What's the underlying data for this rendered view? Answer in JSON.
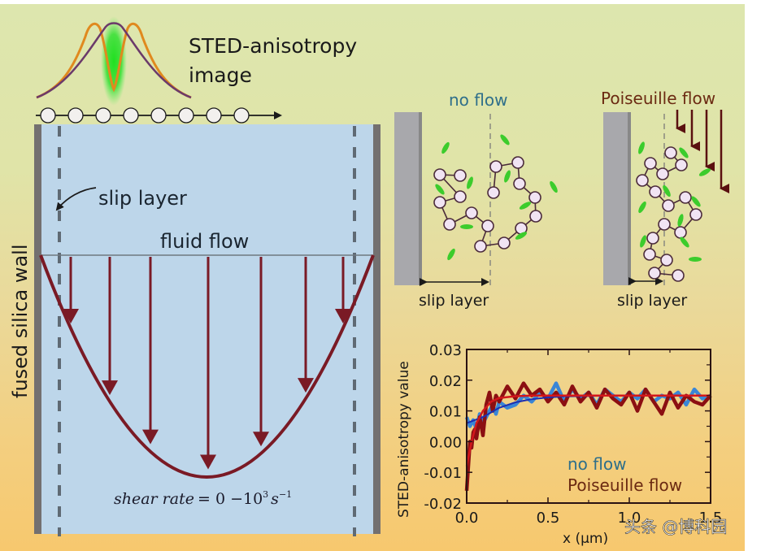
{
  "title": {
    "line1": "STED-anisotropy",
    "line2": "image"
  },
  "channel": {
    "wall_label": "fused silica wall",
    "slip_label": "slip layer",
    "flow_label": "fluid flow",
    "shear_label": "shear rate = 0 − 10³ s⁻¹",
    "shear_prefix": "shear rate",
    "shear_eq": "= 0 −10",
    "shear_exp": "3",
    "shear_unit": "s",
    "shear_unit_exp": "−1"
  },
  "panels": {
    "no_flow": {
      "title": "no flow",
      "slip_label": "slip layer"
    },
    "poiseuille": {
      "title": "Poiseuille flow",
      "slip_label": "slip layer"
    }
  },
  "colors": {
    "channel": "#bdd6ea",
    "wall": "#737070",
    "arrow": "#7a1a25",
    "no_flow": "#2f6f8a",
    "poiseuille": "#6b2a12",
    "series_blue": "#3a86d6",
    "series_red": "#8b0f12",
    "fit_blue": "#1c2fb0",
    "fit_red": "#d3171b",
    "dye": "#39d32a"
  },
  "watermark": "头条 @博科园",
  "chart_data": {
    "type": "line",
    "title": "",
    "xlabel": "x (μm)",
    "ylabel": "STED-anisotropy value",
    "xlim": [
      0.0,
      1.5
    ],
    "ylim": [
      -0.02,
      0.03
    ],
    "xticks": [
      "0.0",
      "0.5",
      "1.0",
      "1.5"
    ],
    "yticks": [
      "0.03",
      "0.02",
      "0.01",
      "0.00",
      "-0.01",
      "-0.02"
    ],
    "legend": [
      "no flow",
      "Poiseuille flow"
    ],
    "legend_position": "bottom-right",
    "series": [
      {
        "name": "no flow",
        "x": [
          0.0,
          0.02,
          0.04,
          0.06,
          0.08,
          0.1,
          0.12,
          0.14,
          0.16,
          0.18,
          0.2,
          0.25,
          0.3,
          0.35,
          0.4,
          0.45,
          0.5,
          0.55,
          0.6,
          0.65,
          0.7,
          0.75,
          0.8,
          0.85,
          0.9,
          0.95,
          1.0,
          1.05,
          1.1,
          1.15,
          1.2,
          1.25,
          1.3,
          1.35,
          1.4,
          1.45,
          1.5
        ],
        "y": [
          0.008,
          0.005,
          0.007,
          0.004,
          0.009,
          0.006,
          0.008,
          0.01,
          0.012,
          0.009,
          0.013,
          0.011,
          0.012,
          0.015,
          0.013,
          0.016,
          0.014,
          0.019,
          0.013,
          0.017,
          0.014,
          0.016,
          0.012,
          0.017,
          0.015,
          0.013,
          0.016,
          0.014,
          0.017,
          0.013,
          0.015,
          0.014,
          0.016,
          0.012,
          0.017,
          0.014,
          0.015
        ]
      },
      {
        "name": "Poiseuille flow",
        "x": [
          0.0,
          0.01,
          0.02,
          0.03,
          0.04,
          0.05,
          0.06,
          0.08,
          0.1,
          0.12,
          0.14,
          0.16,
          0.18,
          0.2,
          0.25,
          0.3,
          0.35,
          0.4,
          0.45,
          0.5,
          0.55,
          0.6,
          0.65,
          0.7,
          0.75,
          0.8,
          0.85,
          0.9,
          0.95,
          1.0,
          1.05,
          1.1,
          1.15,
          1.2,
          1.25,
          1.3,
          1.35,
          1.4,
          1.45,
          1.5
        ],
        "y": [
          -0.016,
          -0.008,
          0.0,
          -0.002,
          0.003,
          0.004,
          0.001,
          0.008,
          0.002,
          0.012,
          0.016,
          0.01,
          0.015,
          0.013,
          0.018,
          0.014,
          0.019,
          0.015,
          0.017,
          0.013,
          0.016,
          0.012,
          0.018,
          0.013,
          0.016,
          0.011,
          0.017,
          0.014,
          0.012,
          0.016,
          0.01,
          0.017,
          0.013,
          0.009,
          0.016,
          0.011,
          0.015,
          0.013,
          0.012,
          0.015
        ]
      },
      {
        "name": "no flow fit",
        "fit": true,
        "x": [
          0.0,
          0.1,
          0.2,
          0.3,
          0.4,
          0.5,
          0.6,
          0.8,
          1.0,
          1.2,
          1.5
        ],
        "y": [
          0.006,
          0.008,
          0.011,
          0.0128,
          0.0138,
          0.0144,
          0.0147,
          0.0149,
          0.015,
          0.015,
          0.015
        ]
      },
      {
        "name": "Poiseuille flow fit",
        "fit": true,
        "x": [
          0.0,
          0.03,
          0.06,
          0.1,
          0.15,
          0.2,
          0.3,
          0.4,
          0.6,
          0.8,
          1.0,
          1.5
        ],
        "y": [
          -0.008,
          0.0,
          0.006,
          0.01,
          0.013,
          0.0142,
          0.0148,
          0.015,
          0.015,
          0.015,
          0.015,
          0.015
        ]
      }
    ]
  }
}
